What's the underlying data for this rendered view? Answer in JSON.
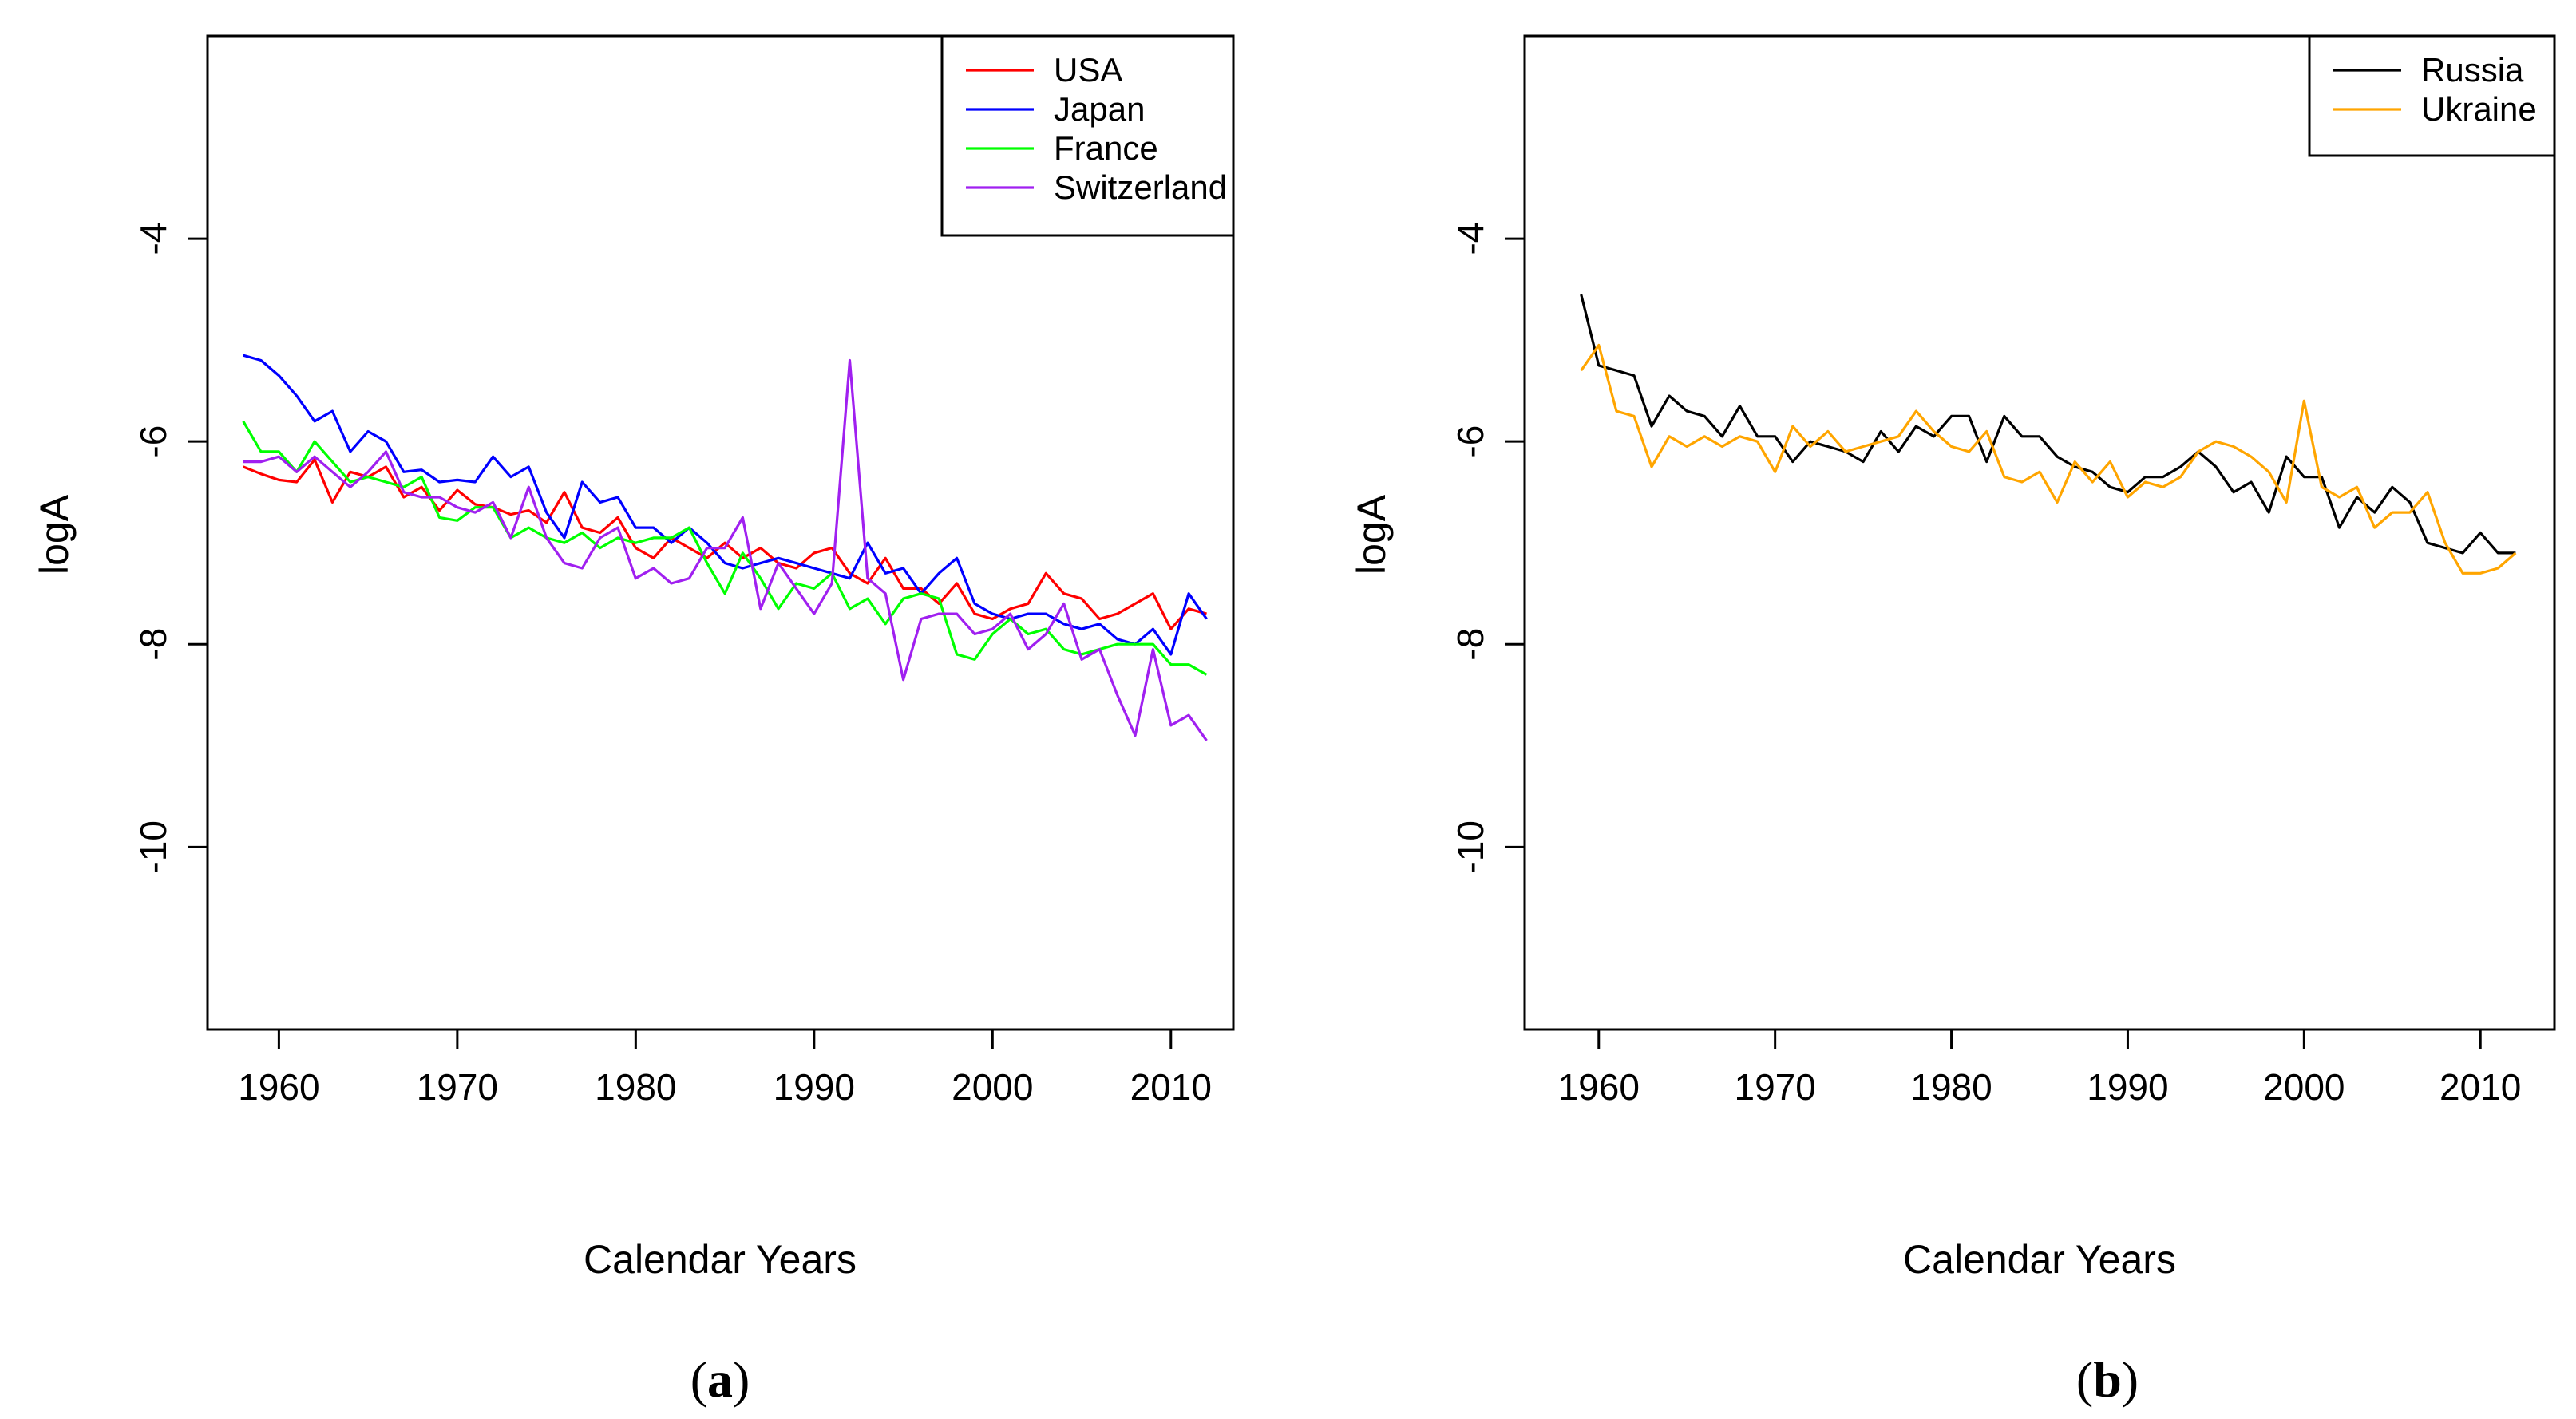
{
  "chart_data": [
    {
      "type": "line",
      "panel": "a",
      "caption": {
        "open": "(",
        "letter": "a",
        "close": ")"
      },
      "title": "",
      "xlabel": "Calendar Years",
      "ylabel": "logA",
      "xlim": [
        1956,
        2013.5
      ],
      "ylim": [
        -11.8,
        -2
      ],
      "xticks": [
        1960,
        1970,
        1980,
        1990,
        2000,
        2010
      ],
      "yticks": [
        -4,
        -6,
        -8,
        -10
      ],
      "legend_position": "top-right",
      "x": [
        1958,
        1959,
        1960,
        1961,
        1962,
        1963,
        1964,
        1965,
        1966,
        1967,
        1968,
        1969,
        1970,
        1971,
        1972,
        1973,
        1974,
        1975,
        1976,
        1977,
        1978,
        1979,
        1980,
        1981,
        1982,
        1983,
        1984,
        1985,
        1986,
        1987,
        1988,
        1989,
        1990,
        1991,
        1992,
        1993,
        1994,
        1995,
        1996,
        1997,
        1998,
        1999,
        2000,
        2001,
        2002,
        2003,
        2004,
        2005,
        2006,
        2007,
        2008,
        2009,
        2010,
        2011,
        2012
      ],
      "series": [
        {
          "name": "USA",
          "color": "#ff0000",
          "values": [
            -6.25,
            -6.32,
            -6.38,
            -6.4,
            -6.18,
            -6.6,
            -6.3,
            -6.35,
            -6.25,
            -6.55,
            -6.45,
            -6.68,
            -6.48,
            -6.62,
            -6.65,
            -6.72,
            -6.68,
            -6.8,
            -6.5,
            -6.85,
            -6.9,
            -6.75,
            -7.05,
            -7.15,
            -6.95,
            -7.05,
            -7.15,
            -7.0,
            -7.15,
            -7.05,
            -7.2,
            -7.25,
            -7.1,
            -7.05,
            -7.3,
            -7.4,
            -7.15,
            -7.45,
            -7.45,
            -7.6,
            -7.4,
            -7.7,
            -7.75,
            -7.65,
            -7.6,
            -7.3,
            -7.5,
            -7.55,
            -7.75,
            -7.7,
            -7.6,
            -7.5,
            -7.85,
            -7.65,
            -7.7
          ]
        },
        {
          "name": "Japan",
          "color": "#0000ff",
          "values": [
            -5.15,
            -5.2,
            -5.35,
            -5.55,
            -5.8,
            -5.7,
            -6.1,
            -5.9,
            -6.0,
            -6.3,
            -6.28,
            -6.4,
            -6.38,
            -6.4,
            -6.15,
            -6.35,
            -6.25,
            -6.7,
            -6.95,
            -6.4,
            -6.6,
            -6.55,
            -6.85,
            -6.85,
            -7.0,
            -6.85,
            -7.0,
            -7.2,
            -7.25,
            -7.2,
            -7.15,
            -7.2,
            -7.25,
            -7.3,
            -7.35,
            -7.0,
            -7.3,
            -7.25,
            -7.5,
            -7.3,
            -7.15,
            -7.6,
            -7.7,
            -7.75,
            -7.7,
            -7.7,
            -7.8,
            -7.85,
            -7.8,
            -7.95,
            -8.0,
            -7.85,
            -8.1,
            -7.5,
            -7.75
          ]
        },
        {
          "name": "France",
          "color": "#00ff00",
          "values": [
            -5.8,
            -6.1,
            -6.1,
            -6.3,
            -6.0,
            -6.2,
            -6.4,
            -6.35,
            -6.4,
            -6.45,
            -6.35,
            -6.75,
            -6.78,
            -6.65,
            -6.65,
            -6.95,
            -6.85,
            -6.95,
            -7.0,
            -6.9,
            -7.05,
            -6.95,
            -7.0,
            -6.95,
            -6.95,
            -6.85,
            -7.2,
            -7.5,
            -7.1,
            -7.35,
            -7.65,
            -7.4,
            -7.45,
            -7.3,
            -7.65,
            -7.55,
            -7.8,
            -7.55,
            -7.5,
            -7.55,
            -8.1,
            -8.15,
            -7.9,
            -7.75,
            -7.9,
            -7.85,
            -8.05,
            -8.1,
            -8.05,
            -8.0,
            -8.0,
            -8.0,
            -8.2,
            -8.2,
            -8.3
          ]
        },
        {
          "name": "Switzerland",
          "color": "#a020f0",
          "values": [
            -6.2,
            -6.2,
            -6.15,
            -6.3,
            -6.15,
            -6.3,
            -6.45,
            -6.3,
            -6.1,
            -6.5,
            -6.55,
            -6.55,
            -6.65,
            -6.7,
            -6.6,
            -6.95,
            -6.45,
            -6.95,
            -7.2,
            -7.25,
            -6.95,
            -6.85,
            -7.35,
            -7.25,
            -7.4,
            -7.35,
            -7.05,
            -7.05,
            -6.75,
            -7.65,
            -7.2,
            -7.45,
            -7.7,
            -7.4,
            -5.2,
            -7.35,
            -7.5,
            -8.35,
            -7.75,
            -7.7,
            -7.7,
            -7.9,
            -7.85,
            -7.7,
            -8.05,
            -7.9,
            -7.6,
            -8.15,
            -8.05,
            -8.5,
            -8.9,
            -8.05,
            -8.8,
            -8.7,
            -8.95
          ]
        }
      ]
    },
    {
      "type": "line",
      "panel": "b",
      "caption": {
        "open": "(",
        "letter": "b",
        "close": ")"
      },
      "title": "",
      "xlabel": "Calendar Years",
      "ylabel": "logA",
      "xlim": [
        1955.8,
        2014.2
      ],
      "ylim": [
        -11.8,
        -2
      ],
      "xticks": [
        1960,
        1970,
        1980,
        1990,
        2000,
        2010
      ],
      "yticks": [
        -4,
        -6,
        -8,
        -10
      ],
      "legend_position": "top-right",
      "x": [
        1959,
        1960,
        1961,
        1962,
        1963,
        1964,
        1965,
        1966,
        1967,
        1968,
        1969,
        1970,
        1971,
        1972,
        1973,
        1974,
        1975,
        1976,
        1977,
        1978,
        1979,
        1980,
        1981,
        1982,
        1983,
        1984,
        1985,
        1986,
        1987,
        1988,
        1989,
        1990,
        1991,
        1992,
        1993,
        1994,
        1995,
        1996,
        1997,
        1998,
        1999,
        2000,
        2001,
        2002,
        2003,
        2004,
        2005,
        2006,
        2007,
        2008,
        2009,
        2010,
        2011,
        2012
      ],
      "series": [
        {
          "name": "Russia",
          "color": "#000000",
          "values": [
            -4.55,
            -5.25,
            -5.3,
            -5.35,
            -5.85,
            -5.55,
            -5.7,
            -5.75,
            -5.95,
            -5.65,
            -5.95,
            -5.95,
            -6.2,
            -6.0,
            -6.05,
            -6.1,
            -6.2,
            -5.9,
            -6.1,
            -5.85,
            -5.95,
            -5.75,
            -5.75,
            -6.2,
            -5.75,
            -5.95,
            -5.95,
            -6.15,
            -6.25,
            -6.3,
            -6.45,
            -6.5,
            -6.35,
            -6.35,
            -6.25,
            -6.1,
            -6.25,
            -6.5,
            -6.4,
            -6.7,
            -6.15,
            -6.35,
            -6.35,
            -6.85,
            -6.55,
            -6.7,
            -6.45,
            -6.6,
            -7.0,
            -7.05,
            -7.1,
            -6.9,
            -7.1,
            -7.1
          ]
        },
        {
          "name": "Ukraine",
          "color": "#ffa500",
          "values": [
            -5.3,
            -5.05,
            -5.7,
            -5.75,
            -6.25,
            -5.95,
            -6.05,
            -5.95,
            -6.05,
            -5.95,
            -6.0,
            -6.3,
            -5.85,
            -6.05,
            -5.9,
            -6.1,
            -6.05,
            -6.0,
            -5.95,
            -5.7,
            -5.9,
            -6.05,
            -6.1,
            -5.9,
            -6.35,
            -6.4,
            -6.3,
            -6.6,
            -6.2,
            -6.4,
            -6.2,
            -6.55,
            -6.4,
            -6.45,
            -6.35,
            -6.1,
            -6.0,
            -6.05,
            -6.15,
            -6.3,
            -6.6,
            -5.6,
            -6.45,
            -6.55,
            -6.45,
            -6.85,
            -6.7,
            -6.7,
            -6.5,
            -7.0,
            -7.3,
            -7.3,
            -7.25,
            -7.1
          ]
        }
      ]
    }
  ]
}
